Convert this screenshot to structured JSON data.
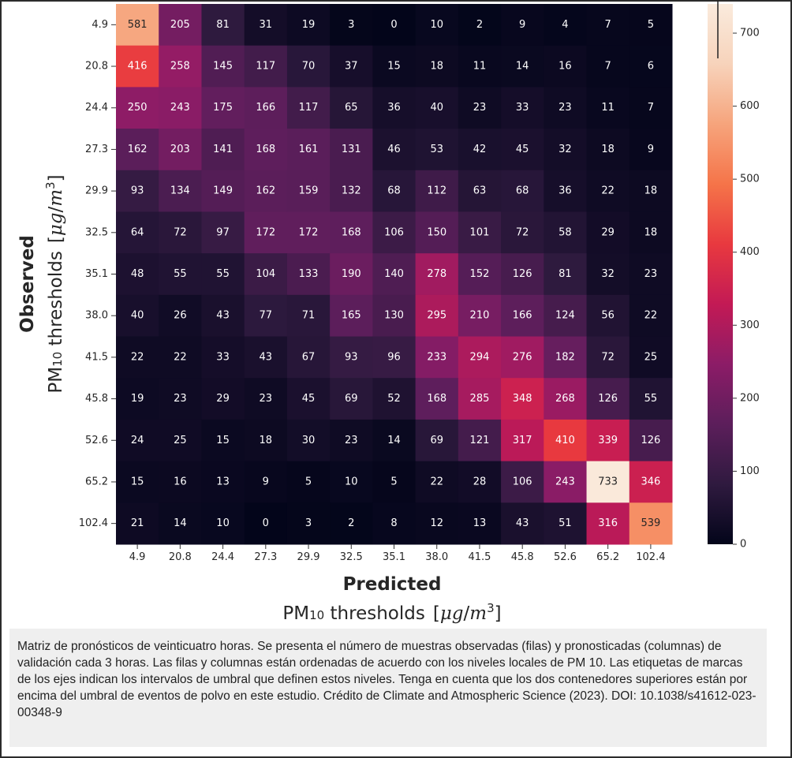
{
  "chart_data": {
    "type": "heatmap",
    "title": "",
    "xlabel": "Predicted",
    "xlabel_sub": {
      "prefix": "PM",
      "subscript": "10",
      "text": " thresholds",
      "units_open": "[",
      "units_mu": "μg",
      "units_slash": "/",
      "units_m": "m",
      "units_exp": "3",
      "units_close": "]"
    },
    "ylabel": "Observed",
    "ylabel_sub": {
      "prefix": "PM",
      "subscript": "10",
      "text": " thresholds",
      "units_open": "[",
      "units_mu": "μg",
      "units_slash": "/",
      "units_m": "m",
      "units_exp": "3",
      "units_close": "]"
    },
    "x_categories": [
      "4.9",
      "20.8",
      "24.4",
      "27.3",
      "29.9",
      "32.5",
      "35.1",
      "38.0",
      "41.5",
      "45.8",
      "52.6",
      "65.2",
      "102.4"
    ],
    "y_categories": [
      "4.9",
      "20.8",
      "24.4",
      "27.3",
      "29.9",
      "32.5",
      "35.1",
      "38.0",
      "41.5",
      "45.8",
      "52.6",
      "65.2",
      "102.4"
    ],
    "values": [
      [
        581,
        205,
        81,
        31,
        19,
        3,
        0,
        10,
        2,
        9,
        4,
        7,
        5
      ],
      [
        416,
        258,
        145,
        117,
        70,
        37,
        15,
        18,
        11,
        14,
        16,
        7,
        6
      ],
      [
        250,
        243,
        175,
        166,
        117,
        65,
        36,
        40,
        23,
        33,
        23,
        11,
        7
      ],
      [
        162,
        203,
        141,
        168,
        161,
        131,
        46,
        53,
        42,
        45,
        32,
        18,
        9
      ],
      [
        93,
        134,
        149,
        162,
        159,
        132,
        68,
        112,
        63,
        68,
        36,
        22,
        18
      ],
      [
        64,
        72,
        97,
        172,
        172,
        168,
        106,
        150,
        101,
        72,
        58,
        29,
        18
      ],
      [
        48,
        55,
        55,
        104,
        133,
        190,
        140,
        278,
        152,
        126,
        81,
        32,
        23
      ],
      [
        40,
        26,
        43,
        77,
        71,
        165,
        130,
        295,
        210,
        166,
        124,
        56,
        22
      ],
      [
        22,
        22,
        33,
        43,
        67,
        93,
        96,
        233,
        294,
        276,
        182,
        72,
        25
      ],
      [
        19,
        23,
        29,
        23,
        45,
        69,
        52,
        168,
        285,
        348,
        268,
        126,
        55
      ],
      [
        24,
        25,
        15,
        18,
        30,
        23,
        14,
        69,
        121,
        317,
        410,
        339,
        126
      ],
      [
        15,
        16,
        13,
        9,
        5,
        10,
        5,
        22,
        28,
        106,
        243,
        733,
        346
      ],
      [
        21,
        14,
        10,
        0,
        3,
        2,
        8,
        12,
        13,
        43,
        51,
        316,
        539
      ]
    ],
    "colorbar": {
      "range": [
        0,
        740
      ],
      "ticks": [
        0,
        100,
        200,
        300,
        400,
        500,
        600,
        700
      ],
      "colormap": "rocket",
      "stops": [
        "#03051a",
        "#2f1a3f",
        "#5c1e5b",
        "#8c1c67",
        "#c31a55",
        "#e8393f",
        "#f57449",
        "#f6a47c",
        "#f7d3bb",
        "#faebdd"
      ]
    },
    "grid": false,
    "legend": "colorbar-right"
  },
  "caption": {
    "text": "Matriz de pronósticos de veinticuatro horas. Se presenta el número de muestras observadas (filas) y pronosticadas (columnas) de validación cada 3 horas. Las filas y columnas están ordenadas de acuerdo con los niveles locales de PM 10. Las etiquetas de marcas de los ejes indican los intervalos de umbral que definen estos niveles. Tenga en cuenta que los dos contenedores superiores están por encima del umbral de eventos de polvo en este estudio. Crédito de Climate and Atmospheric Science (2023). DOI: 10.1038/s41612-023-00348-9"
  }
}
